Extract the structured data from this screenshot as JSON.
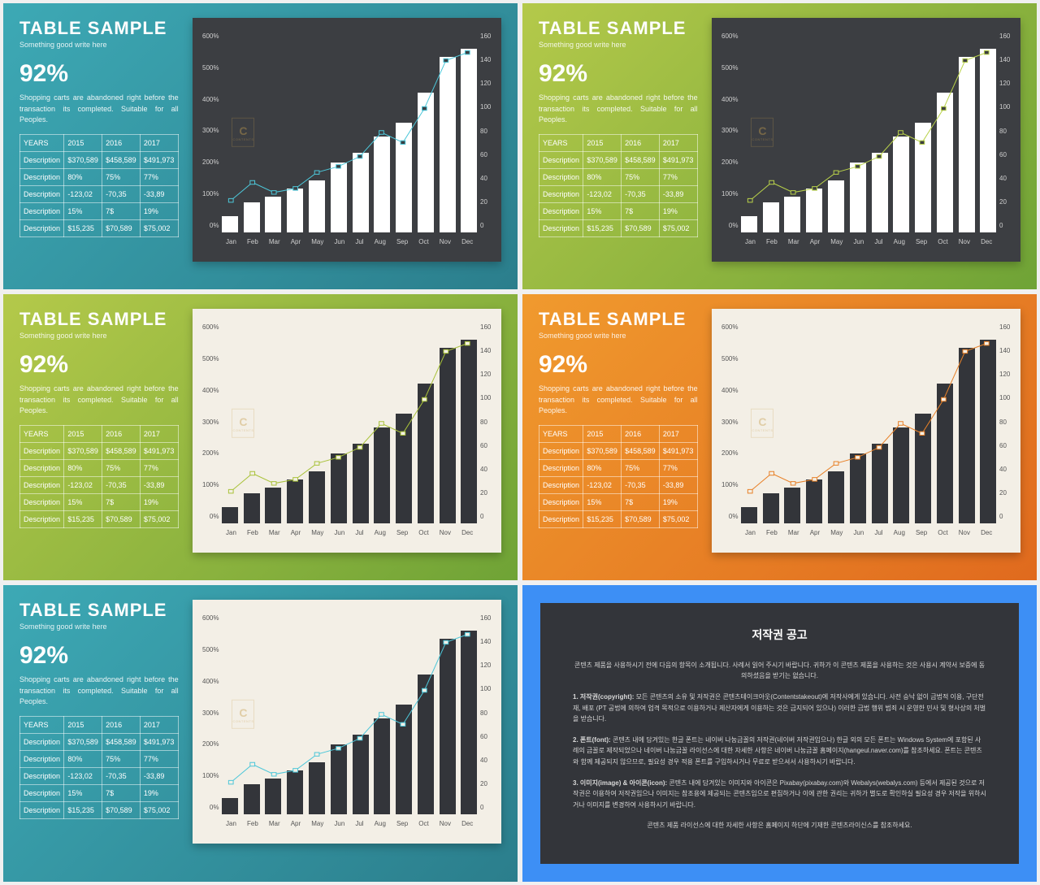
{
  "common": {
    "title": "TABLE SAMPLE",
    "subtitle": "Something good write here",
    "bignum": "92%",
    "desc": "Shopping carts are abandoned right before the transaction its completed. Suitable for all Peoples.",
    "table": {
      "headers": [
        "YEARS",
        "2015",
        "2016",
        "2017"
      ],
      "rows": [
        [
          "Description",
          "$370,589",
          "$458,589",
          "$491,973"
        ],
        [
          "Description",
          "80%",
          "75%",
          "77%"
        ],
        [
          "Description",
          "-123,02",
          "-70,35",
          "-33,89"
        ],
        [
          "Description",
          "15%",
          "7$",
          "19%"
        ],
        [
          "Description",
          "$15,235",
          "$70,589",
          "$75,002"
        ]
      ]
    },
    "chart": {
      "type": "bar+line",
      "months": [
        "Jan",
        "Feb",
        "Mar",
        "Apr",
        "May",
        "Jun",
        "Jul",
        "Aug",
        "Sep",
        "Oct",
        "Nov",
        "Dec"
      ],
      "bar_values_pct": [
        8,
        15,
        18,
        22,
        26,
        35,
        40,
        48,
        55,
        70,
        88,
        92
      ],
      "line_values_pct": [
        16,
        25,
        20,
        22,
        30,
        33,
        38,
        50,
        45,
        62,
        86,
        90
      ],
      "left_ticks": [
        "600%",
        "500%",
        "400%",
        "300%",
        "200%",
        "100%",
        "0%"
      ],
      "right_ticks": [
        "160",
        "140",
        "120",
        "100",
        "80",
        "60",
        "40",
        "20",
        "0"
      ],
      "watermark_letter": "C",
      "watermark_sub": "CONTENTS"
    }
  },
  "panels": [
    {
      "bg_gradient": [
        "#3da9b5",
        "#2b7e8c"
      ],
      "chart_bg": "#3c3e42",
      "bar_color": "#ffffff",
      "line_color": "#4dc7d9",
      "axis_text": "#d0d0d0"
    },
    {
      "bg_gradient": [
        "#b4c94a",
        "#6fa336"
      ],
      "chart_bg": "#3c3e42",
      "bar_color": "#ffffff",
      "line_color": "#b9d24a",
      "axis_text": "#d0d0d0"
    },
    {
      "bg_gradient": [
        "#b4c94a",
        "#6fa336"
      ],
      "chart_bg": "#f3efe6",
      "bar_color": "#33353a",
      "line_color": "#a9c23a",
      "axis_text": "#555555"
    },
    {
      "bg_gradient": [
        "#f09a2e",
        "#e06a1e"
      ],
      "chart_bg": "#f3efe6",
      "bar_color": "#33353a",
      "line_color": "#e88128",
      "axis_text": "#555555"
    },
    {
      "bg_gradient": [
        "#3da9b5",
        "#2b7e8c"
      ],
      "chart_bg": "#f3efe6",
      "bar_color": "#33353a",
      "line_color": "#4dc7d9",
      "axis_text": "#555555"
    }
  ],
  "copyright": {
    "title": "저작권 공고",
    "p1": "콘텐츠 제품을 사용하시기 전에 다음의 항목이 소개됩니다. 사례서 읽어 주시기 바랍니다. 귀하가 이 콘텐츠 제품을 사용하는 것은 사용시 계약서 보증에 동의하셨음을 받기는 없습니다.",
    "p2_label": "1. 저작권(copyright):",
    "p2": "모든 콘텐츠의 소유 및 저작권은 콘텐츠테이크아웃(Contentstakeout)에 저작사에게 있습니다. 사전 승낙 없이 금법적 이용, 구단전재, 배포 (PT 공법에 의하여 업격 목적으로 이용하거나 제산자에게 이용하는 것은 금지되어 있으나) 이러한 금법 행위 범죄 시 운영한 민사 및 형사상의 처벌을 받습니다.",
    "p3_label": "2. 폰트(font):",
    "p3": "콘텐츠 내에 담겨있는 한글 폰트는 네이버 나눔금꼴의 저작권(네이버 저작권임으나) 한글 외의 모든 폰트는 Windows System에 포함된 사례의 금꼴로 제작되었으나 네이버 나눔금꼴 라이선스에 대한 자세한 사항은 네이버 나눔금꼴 홈페이지(hangeul.naver.com)를 참조하세요. 폰트는 콘텐츠와 함께 제공되지 않으므로, 필요성 경우 적용 폰트를 구입하시거나 무료로 받으셔서 사용하시기 바랍니다.",
    "p4_label": "3. 이미지(image) & 아이콘(icon):",
    "p4": "콘텐츠 내에 담겨있는 이미지와 아이콘은 Pixabay(pixabay.com)와 Webalys(webalys.com) 등에서 제공된 것으로 저작권은 이용하여 저작권임으나 이미지는 참조용에 제공되는 콘텐츠임으로 편집하거나 이에 관한 권리는 귀하가 별도로 확인하실 필요성 경우 저작을 위하시거나 이미지를 변경하여 사용하시기 바랍니다.",
    "p5": "콘텐츠 제품 라이선스에 대한 자세한 사항은 홈페이지 하단에 기재한 콘텐츠라이신스를 참조하세요."
  }
}
